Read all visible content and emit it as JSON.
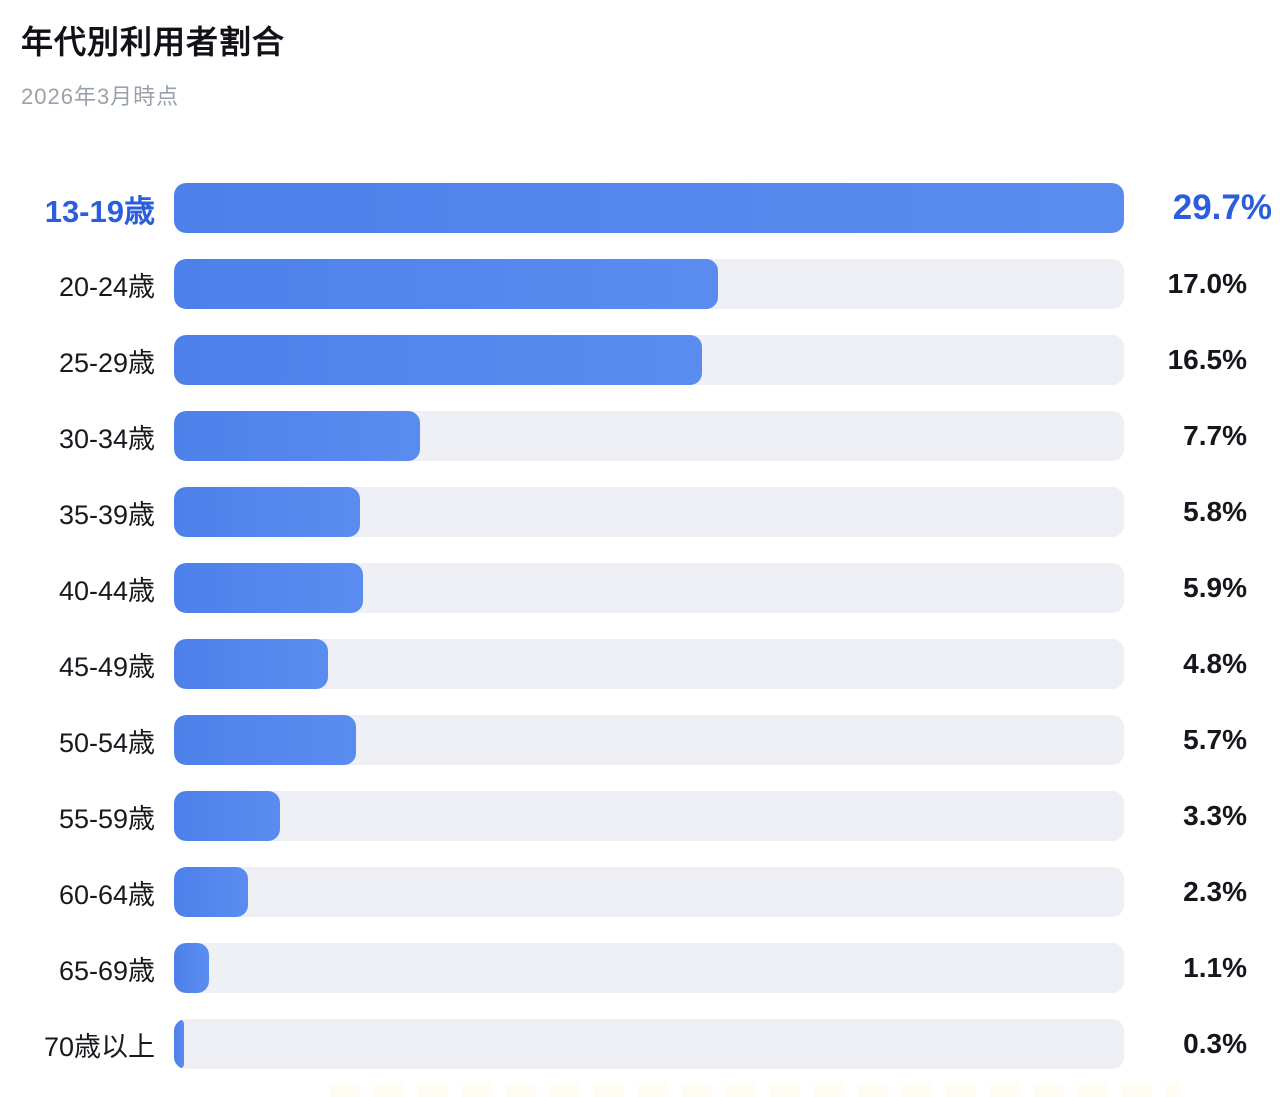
{
  "header": {
    "title": "年代別利用者割合",
    "subtitle": "2026年3月時点"
  },
  "chart_data": {
    "type": "bar",
    "orientation": "horizontal",
    "title": "年代別利用者割合",
    "subtitle": "2026年3月時点",
    "categories": [
      "13-19歳",
      "20-24歳",
      "25-29歳",
      "30-34歳",
      "35-39歳",
      "40-44歳",
      "45-49歳",
      "50-54歳",
      "55-59歳",
      "60-64歳",
      "65-69歳",
      "70歳以上"
    ],
    "values": [
      29.7,
      17.0,
      16.5,
      7.7,
      5.8,
      5.9,
      4.8,
      5.7,
      3.3,
      2.3,
      1.1,
      0.3
    ],
    "value_labels": [
      "29.7%",
      "17.0%",
      "16.5%",
      "7.7%",
      "5.8%",
      "5.9%",
      "4.8%",
      "5.7%",
      "3.3%",
      "2.3%",
      "1.1%",
      "0.3%"
    ],
    "unit": "%",
    "highlight_index": 0,
    "axis_max": 29.7,
    "grid": false,
    "legend": false,
    "colors": {
      "bar_gradient_start": "#4e80ea",
      "bar_gradient_end": "#5a8cf0",
      "track": "#eef0f6",
      "highlight_text": "#2b5edc",
      "label_text": "#17191e",
      "value_text": "#15171c",
      "title_text": "#101217",
      "subtitle_text": "#9aa1ab"
    }
  }
}
